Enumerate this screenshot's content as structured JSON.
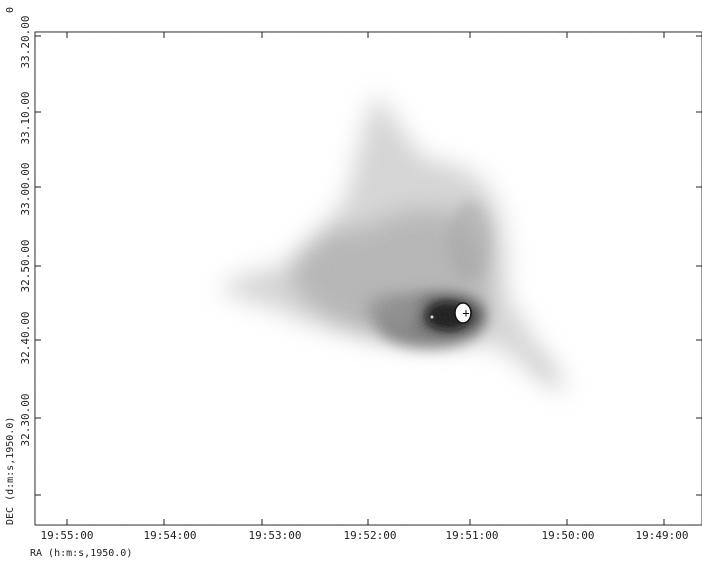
{
  "axes": {
    "x_label": "RA (h:m:s,1950.0)",
    "y_label": "DEC (d:m:s,1950.0)",
    "x_ticks": [
      "19:55:00",
      "19:54:00",
      "19:53:00",
      "19:52:00",
      "19:51:00",
      "19:50:00",
      "19:49:00"
    ],
    "y_ticks": [
      "33.20.00",
      "33.10.00",
      "33.00.00",
      "32.50.00",
      "32.40.00",
      "32.30.00"
    ],
    "corner_label": "0"
  },
  "image": {
    "colormap": "grayscale, dark = bright emission",
    "bright_source_marker": "+"
  }
}
